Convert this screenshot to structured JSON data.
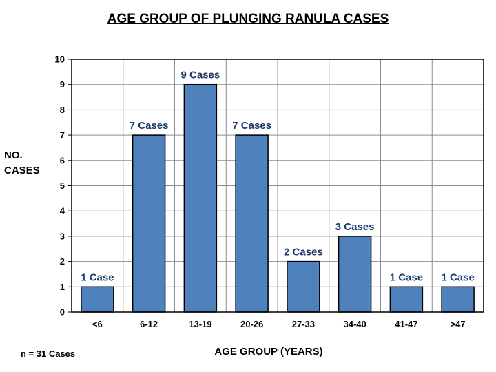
{
  "chart_data": {
    "type": "bar",
    "title": "AGE GROUP OF PLUNGING RANULA CASES",
    "ylabel": "NO. CASES",
    "xlabel": "AGE GROUP (YEARS)",
    "categories": [
      "<6",
      "6-12",
      "13-19",
      "20-26",
      "27-33",
      "34-40",
      "41-47",
      ">47"
    ],
    "values": [
      1,
      7,
      9,
      7,
      2,
      3,
      1,
      1
    ],
    "data_labels": [
      "1 Case",
      "7 Cases",
      "9 Cases",
      "7 Cases",
      "2 Cases",
      "3 Cases",
      "1 Case",
      "1 Case"
    ],
    "ylim": [
      0,
      10
    ],
    "yticks": [
      0,
      1,
      2,
      3,
      4,
      5,
      6,
      7,
      8,
      9,
      10
    ],
    "grid": true,
    "note": "n = 31 Cases",
    "colors": {
      "bar": "#4f81bd",
      "bar_edge": "#000000",
      "label": "#1f3a6e"
    }
  }
}
